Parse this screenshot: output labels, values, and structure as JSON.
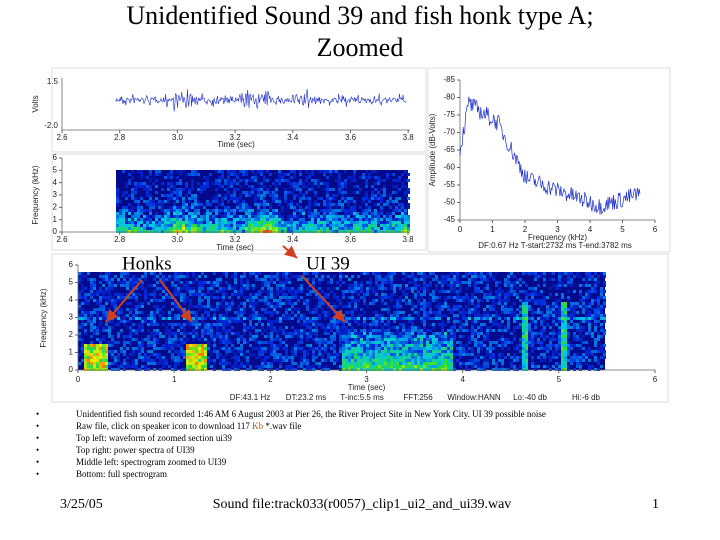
{
  "title_lines": [
    "Unidentified Sound 39 and fish honk type A;",
    "Zoomed"
  ],
  "waveform": {
    "y_label": "Volts",
    "x_label": "Time (sec)",
    "yticks": [
      "1.5",
      "-2.0"
    ],
    "xticks": [
      "2.6",
      "2.8",
      "3.0",
      "3.2",
      "3.4",
      "3.6",
      "3.8"
    ]
  },
  "zoom_spectrogram": {
    "y_label": "Frequency (kHz)",
    "x_label": "Time (sec)",
    "yticks": [
      "0",
      "1",
      "2",
      "3",
      "4",
      "5",
      "6"
    ],
    "xticks": [
      "2.6",
      "2.8",
      "3.0",
      "3.2",
      "3.4",
      "3.6",
      "3.8"
    ]
  },
  "power_spectrum": {
    "y_label": "Amplitude (dB-Volts)",
    "x_label": "Frequency (kHz)",
    "yticks": [
      "-45",
      "-50",
      "-55",
      "-60",
      "-65",
      "-70",
      "-75",
      "-80",
      "-85"
    ],
    "xticks": [
      "0",
      "1",
      "2",
      "3",
      "4",
      "5",
      "6"
    ],
    "info": "DF:0.67 Hz   T-start:2732 ms   T-end:3782 ms"
  },
  "full_spectrogram": {
    "y_label": "Frequency (kHz)",
    "x_label": "Time (sec)",
    "yticks": [
      "0",
      "1",
      "2",
      "3",
      "4",
      "5",
      "6"
    ],
    "xticks": [
      "0",
      "1",
      "2",
      "3",
      "4",
      "5",
      "6"
    ],
    "stats": [
      "DF:43.1 Hz",
      "DT:23.2 ms",
      "T-inc:5.5 ms",
      "FFT:256",
      "Window:HANN",
      "Lo:-40 db",
      "Hi:-6 db"
    ]
  },
  "annotations": [
    "Honks",
    "UI 39"
  ],
  "bullets": [
    "Unidentified fish sound recorded 1:46 AM 6 August 2003 at Pier 26, the River Project Site in New York City. UI 39 possible noise",
    [
      "Raw file, click on speaker icon to download 117 ",
      "Kb",
      " *.wav file"
    ],
    "Top left: waveform of zoomed section ui39",
    "Top right: power spectra of UI39",
    "Middle left: spectrogram zoomed to UI39",
    "Bottom: full spectrogram"
  ],
  "footer": {
    "date": "3/25/05",
    "center": "Sound file:track033(r0057)_clip1_ui2_and_ui39.wav",
    "page": "1"
  }
}
